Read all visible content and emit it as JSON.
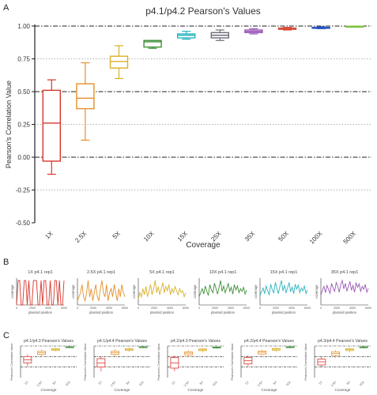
{
  "panels": {
    "a": "A",
    "b": "B",
    "c": "C"
  },
  "chart_data": [
    {
      "type": "box",
      "title": "p4.1/p4.2 Pearson's Values",
      "xlabel": "Coverage",
      "ylabel": "Pearson's Correlation Value",
      "ylim": [
        -0.5,
        1.0
      ],
      "yticks": [
        "-0.50",
        "-0.25",
        "0.00",
        "0.25",
        "0.50",
        "0.75",
        "1.00"
      ],
      "categories": [
        "1X",
        "2.5X",
        "5X",
        "10X",
        "15X",
        "25X",
        "35X",
        "50X",
        "100X",
        "500X"
      ],
      "boxes": [
        {
          "min": -0.13,
          "q1": -0.03,
          "median": 0.26,
          "q3": 0.51,
          "max": 0.59,
          "color": "#d9352b"
        },
        {
          "min": 0.13,
          "q1": 0.37,
          "median": 0.45,
          "q3": 0.56,
          "max": 0.72,
          "color": "#e5902a"
        },
        {
          "min": 0.6,
          "q1": 0.68,
          "median": 0.73,
          "q3": 0.77,
          "max": 0.85,
          "color": "#d9b02a"
        },
        {
          "min": 0.83,
          "q1": 0.84,
          "median": 0.88,
          "q3": 0.89,
          "max": 0.89,
          "color": "#3f8f3a"
        },
        {
          "min": 0.9,
          "q1": 0.91,
          "median": 0.93,
          "q3": 0.94,
          "max": 0.96,
          "color": "#2bb5c0"
        },
        {
          "min": 0.89,
          "q1": 0.91,
          "median": 0.93,
          "q3": 0.95,
          "max": 0.97,
          "color": "#6d6d78"
        },
        {
          "min": 0.94,
          "q1": 0.95,
          "median": 0.96,
          "q3": 0.97,
          "max": 0.98,
          "color": "#9b58b5"
        },
        {
          "min": 0.97,
          "q1": 0.975,
          "median": 0.98,
          "q3": 0.985,
          "max": 0.99,
          "color": "#d94b36"
        },
        {
          "min": 0.98,
          "q1": 0.983,
          "median": 0.987,
          "q3": 0.99,
          "max": 0.995,
          "color": "#2a55c0"
        },
        {
          "min": 0.993,
          "q1": 0.995,
          "median": 0.997,
          "q3": 0.998,
          "max": 1.0,
          "color": "#7fc241"
        }
      ],
      "reference_lines": [
        {
          "y": 1.0,
          "style": "dash-dot",
          "color": "#222222"
        },
        {
          "y": 0.5,
          "style": "dash-dot",
          "color": "#222222"
        },
        {
          "y": 0.0,
          "style": "dash-dot",
          "color": "#222222"
        },
        {
          "y": 0.75,
          "style": "dotted",
          "color": "#999999"
        },
        {
          "y": 0.25,
          "style": "dotted",
          "color": "#999999"
        },
        {
          "y": -0.25,
          "style": "dotted",
          "color": "#999999"
        }
      ]
    },
    {
      "type": "line",
      "title": "1X p4.1 rep1",
      "color": "#d9352b",
      "xlabel": "plasmid position",
      "ylabel": "coverage",
      "xticks": [
        "0",
        "2000",
        "4000",
        "6000"
      ],
      "y": [
        0,
        3,
        3,
        0,
        0,
        3,
        3,
        0,
        3,
        0,
        0,
        3,
        3,
        3,
        0,
        0,
        3,
        0,
        3,
        3,
        0,
        0,
        3,
        0,
        0,
        3,
        3,
        0,
        3,
        0,
        0,
        3
      ]
    },
    {
      "type": "line",
      "title": "2.5X p4.1 rep1",
      "color": "#e5902a",
      "xlabel": "plasmid position",
      "ylabel": "coverage",
      "xticks": [
        "0",
        "2000",
        "4000",
        "6000"
      ],
      "y": [
        1,
        2,
        3,
        5,
        2,
        1,
        3,
        6,
        2,
        4,
        1,
        3,
        5,
        2,
        1,
        4,
        6,
        3,
        2,
        5,
        1,
        3,
        4,
        2,
        5,
        3,
        1,
        4,
        2,
        5,
        3,
        2
      ]
    },
    {
      "type": "line",
      "title": "5X p4.1 rep1",
      "color": "#d9b02a",
      "xlabel": "plasmid position",
      "ylabel": "coverage",
      "xticks": [
        "0",
        "2000",
        "4000",
        "6000"
      ],
      "y": [
        3,
        6,
        4,
        8,
        5,
        9,
        4,
        7,
        10,
        5,
        8,
        12,
        6,
        9,
        5,
        8,
        11,
        6,
        9,
        7,
        10,
        5,
        8,
        6,
        9,
        7,
        5,
        8,
        6,
        7,
        4,
        6
      ]
    },
    {
      "type": "line",
      "title": "10X p4.1 rep1",
      "color": "#3f8f3a",
      "xlabel": "plasmid position",
      "ylabel": "coverage",
      "xticks": [
        "0",
        "2000",
        "4000",
        "6000"
      ],
      "y": [
        6,
        9,
        12,
        8,
        14,
        10,
        7,
        15,
        11,
        9,
        16,
        12,
        8,
        13,
        18,
        10,
        14,
        9,
        12,
        16,
        10,
        13,
        8,
        15,
        11,
        14,
        9,
        12,
        10,
        13,
        8,
        11
      ]
    },
    {
      "type": "line",
      "title": "15X p4.1 rep1",
      "color": "#2bb5c0",
      "xlabel": "plasmid position",
      "ylabel": "coverage",
      "xticks": [
        "0",
        "2000",
        "4000",
        "6000"
      ],
      "y": [
        10,
        14,
        18,
        12,
        20,
        15,
        11,
        22,
        16,
        13,
        24,
        18,
        12,
        20,
        26,
        15,
        21,
        13,
        18,
        24,
        14,
        19,
        12,
        22,
        17,
        21,
        13,
        18,
        15,
        20,
        12,
        16
      ]
    },
    {
      "type": "line",
      "title": "35X p4.1 rep1",
      "color": "#9b58b5",
      "xlabel": "plasmid position",
      "ylabel": "coverage",
      "xticks": [
        "0",
        "2000",
        "4000",
        "6000"
      ],
      "y": [
        20,
        30,
        38,
        25,
        40,
        32,
        24,
        44,
        35,
        28,
        46,
        38,
        26,
        42,
        50,
        33,
        44,
        28,
        38,
        48,
        30,
        40,
        26,
        45,
        36,
        43,
        28,
        38,
        32,
        42,
        26,
        34
      ]
    },
    {
      "type": "box",
      "title": "p4.1/p4.3 Pearson's Values",
      "xlabel": "Coverage",
      "ylabel": "Pearson's Correlation Value",
      "categories": [
        "1X",
        "2.5X",
        "5X",
        "10X"
      ],
      "boxes": [
        {
          "min": 0.05,
          "q1": 0.2,
          "median": 0.35,
          "q3": 0.5,
          "max": 0.6,
          "color": "#d9352b"
        },
        {
          "min": 0.5,
          "q1": 0.6,
          "median": 0.68,
          "q3": 0.75,
          "max": 0.82,
          "color": "#e5902a"
        },
        {
          "min": 0.75,
          "q1": 0.8,
          "median": 0.84,
          "q3": 0.88,
          "max": 0.92,
          "color": "#d9b02a"
        },
        {
          "min": 0.9,
          "q1": 0.93,
          "median": 0.95,
          "q3": 0.96,
          "max": 0.98,
          "color": "#3f8f3a"
        }
      ]
    },
    {
      "type": "box",
      "title": "p4.1/p4.4 Pearson's Values",
      "xlabel": "Coverage",
      "ylabel": "Pearson's Correlation Value",
      "categories": [
        "1X",
        "2.5X",
        "5X",
        "10X"
      ],
      "boxes": [
        {
          "min": -0.2,
          "q1": 0.0,
          "median": 0.2,
          "q3": 0.4,
          "max": 0.5,
          "color": "#d9352b"
        },
        {
          "min": 0.5,
          "q1": 0.6,
          "median": 0.68,
          "q3": 0.75,
          "max": 0.85,
          "color": "#e5902a"
        },
        {
          "min": 0.72,
          "q1": 0.8,
          "median": 0.84,
          "q3": 0.88,
          "max": 0.93,
          "color": "#d9b02a"
        },
        {
          "min": 0.9,
          "q1": 0.93,
          "median": 0.95,
          "q3": 0.96,
          "max": 0.98,
          "color": "#3f8f3a"
        }
      ]
    },
    {
      "type": "box",
      "title": "p4.2/p4.3 Pearson's Values",
      "xlabel": "Coverage",
      "ylabel": "Pearson's Correlation Value",
      "categories": [
        "1X",
        "2.5X",
        "5X",
        "10X"
      ],
      "boxes": [
        {
          "min": -0.2,
          "q1": -0.05,
          "median": 0.2,
          "q3": 0.45,
          "max": 0.55,
          "color": "#d9352b"
        },
        {
          "min": 0.48,
          "q1": 0.58,
          "median": 0.66,
          "q3": 0.72,
          "max": 0.8,
          "color": "#e5902a"
        },
        {
          "min": 0.7,
          "q1": 0.78,
          "median": 0.82,
          "q3": 0.86,
          "max": 0.9,
          "color": "#d9b02a"
        },
        {
          "min": 0.88,
          "q1": 0.91,
          "median": 0.93,
          "q3": 0.95,
          "max": 0.97,
          "color": "#3f8f3a"
        }
      ]
    },
    {
      "type": "box",
      "title": "p4.2/p4.4 Pearson's Values",
      "xlabel": "Coverage",
      "ylabel": "Pearson's Correlation Value",
      "categories": [
        "1X",
        "2.5X",
        "5X",
        "10X"
      ],
      "boxes": [
        {
          "min": 0.05,
          "q1": 0.15,
          "median": 0.3,
          "q3": 0.45,
          "max": 0.55,
          "color": "#d9352b"
        },
        {
          "min": 0.55,
          "q1": 0.62,
          "median": 0.7,
          "q3": 0.76,
          "max": 0.82,
          "color": "#e5902a"
        },
        {
          "min": 0.72,
          "q1": 0.8,
          "median": 0.85,
          "q3": 0.88,
          "max": 0.92,
          "color": "#d9b02a"
        },
        {
          "min": 0.9,
          "q1": 0.93,
          "median": 0.95,
          "q3": 0.96,
          "max": 0.98,
          "color": "#3f8f3a"
        }
      ]
    },
    {
      "type": "box",
      "title": "p4.3/p4.4 Pearson's Values",
      "xlabel": "Coverage",
      "ylabel": "Pearson's Correlation Value",
      "categories": [
        "1X",
        "2.5X",
        "5X",
        "10X"
      ],
      "boxes": [
        {
          "min": 0.0,
          "q1": 0.1,
          "median": 0.25,
          "q3": 0.38,
          "max": 0.5,
          "color": "#d9352b"
        },
        {
          "min": 0.45,
          "q1": 0.55,
          "median": 0.65,
          "q3": 0.72,
          "max": 0.8,
          "color": "#e5902a"
        },
        {
          "min": 0.7,
          "q1": 0.78,
          "median": 0.83,
          "q3": 0.87,
          "max": 0.92,
          "color": "#d9b02a"
        },
        {
          "min": 0.88,
          "q1": 0.92,
          "median": 0.94,
          "q3": 0.96,
          "max": 0.98,
          "color": "#3f8f3a"
        }
      ]
    }
  ]
}
